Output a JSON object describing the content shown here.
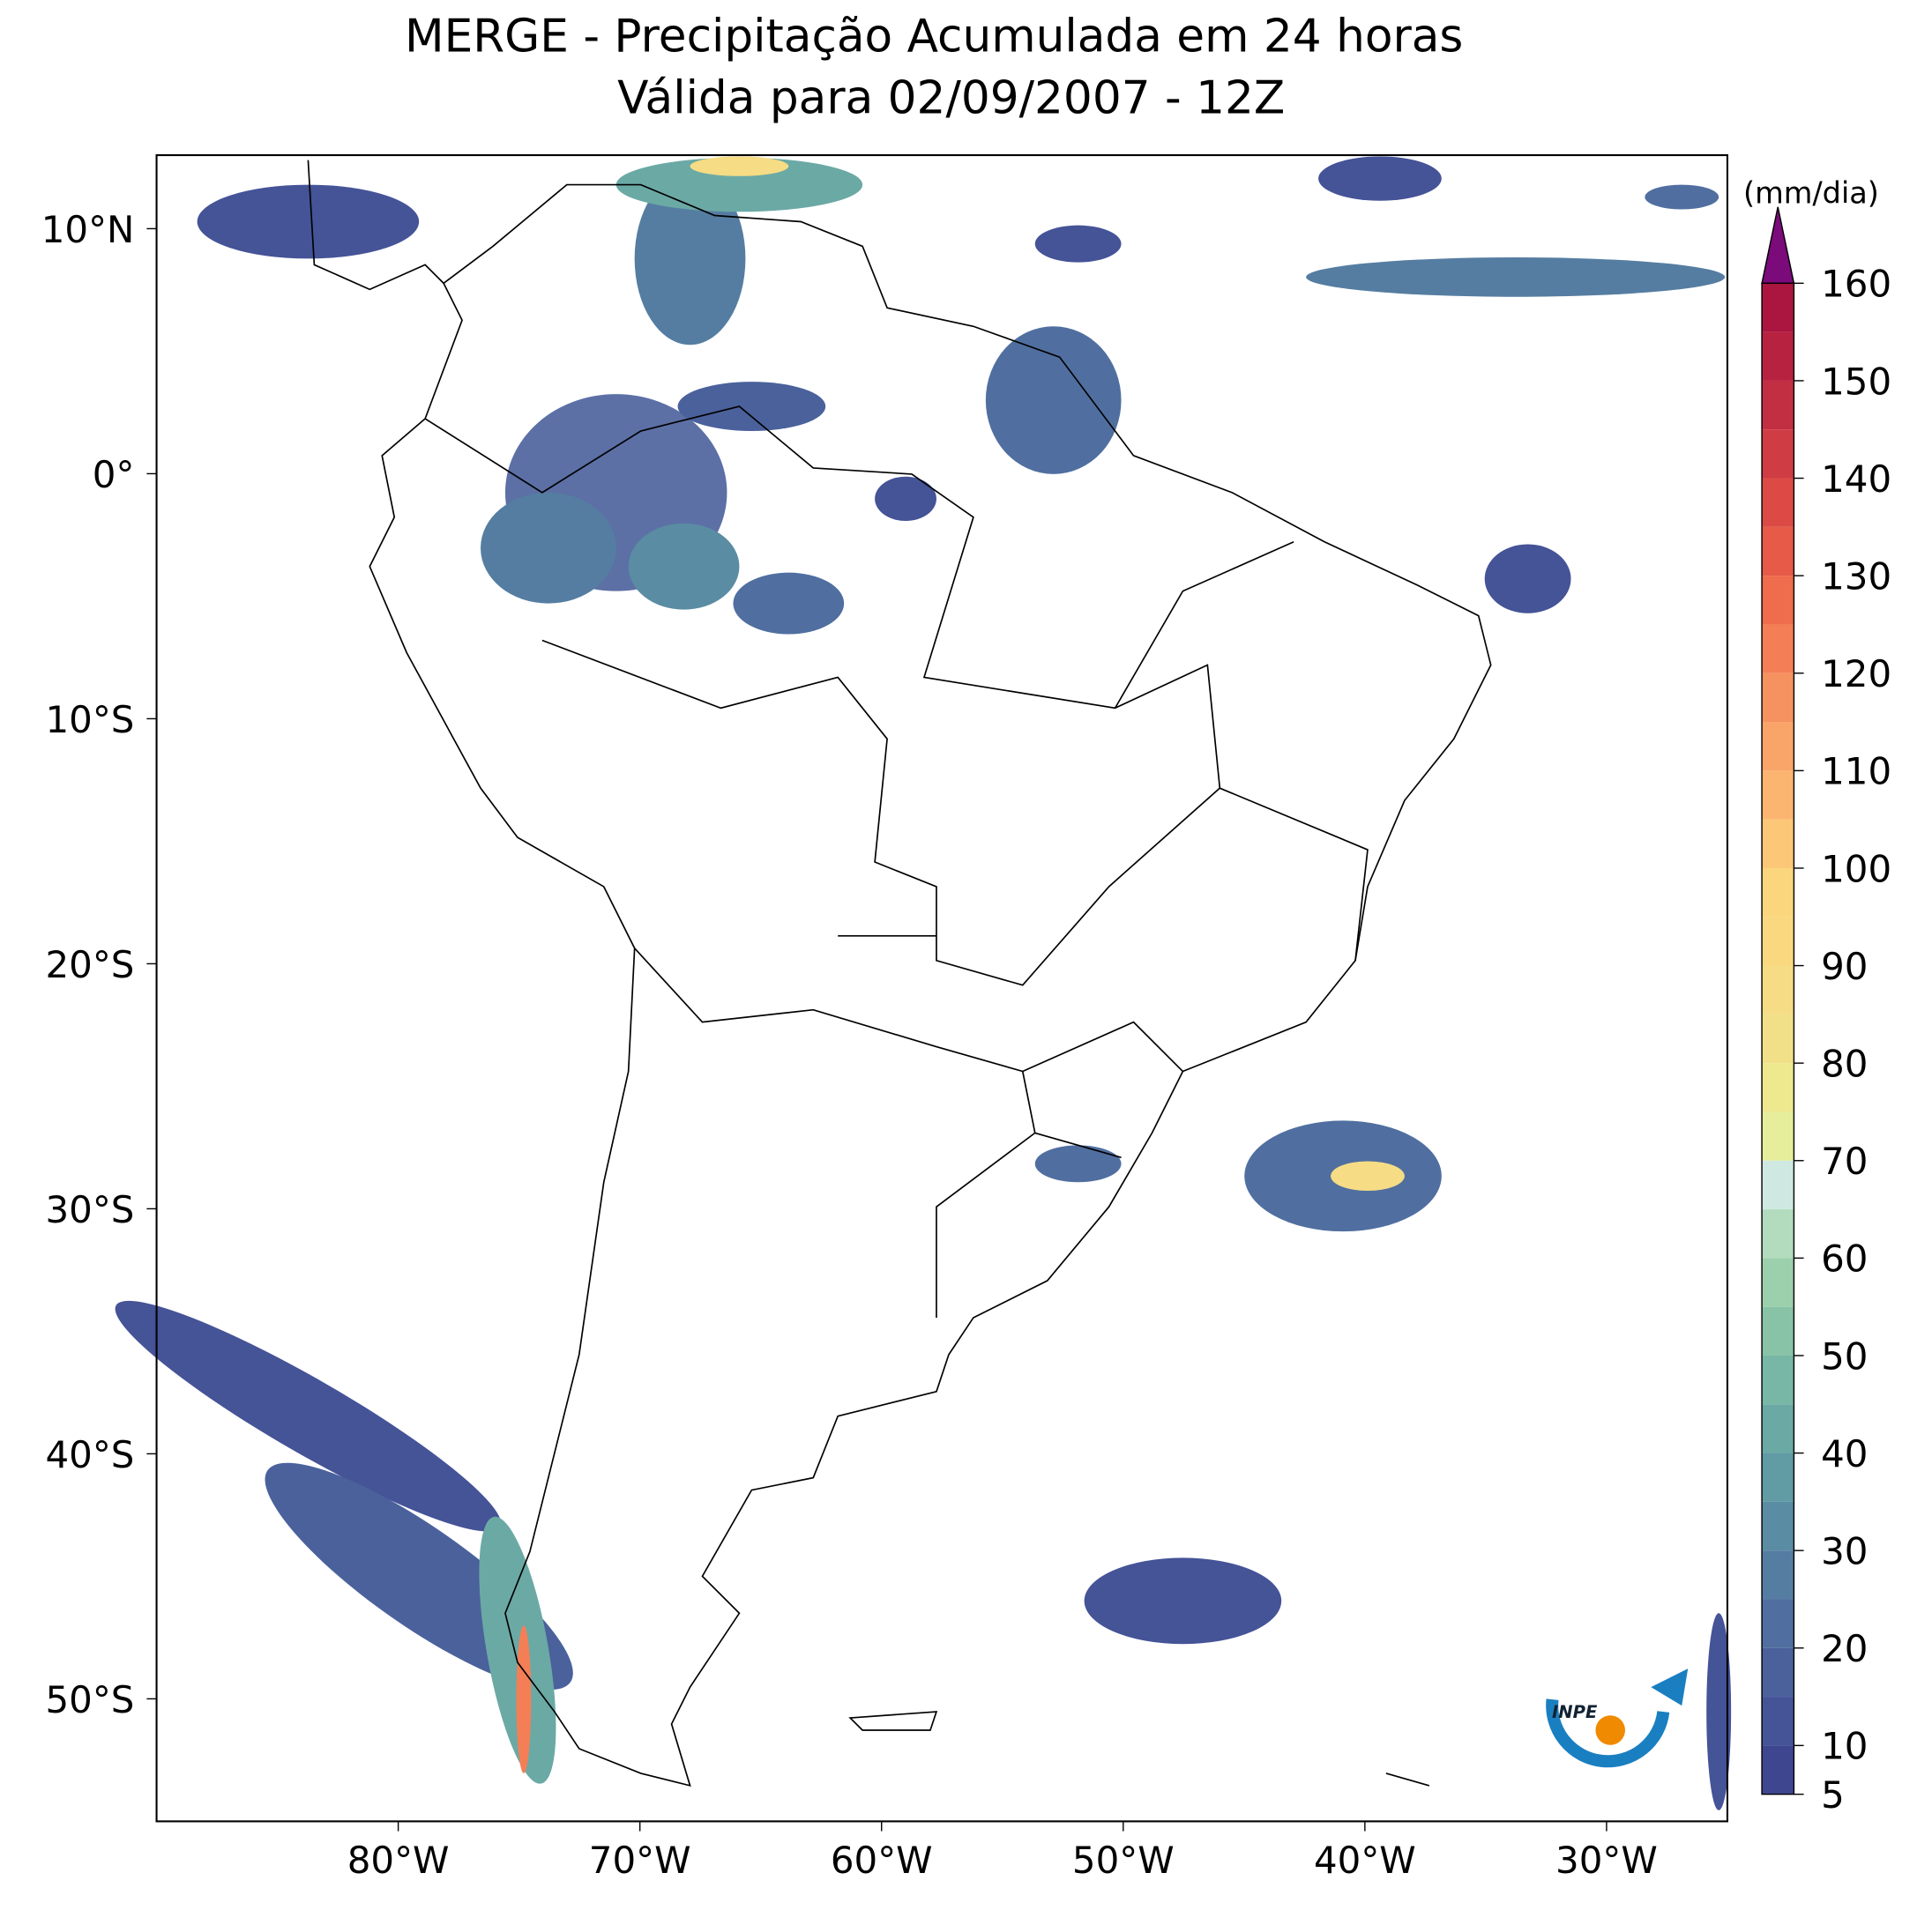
{
  "map": {
    "title": "MERGE - Precipitação Acumulada em 24 horas",
    "subtitle": "Válida para 02/09/2007 - 12Z",
    "lon_range": [
      -90,
      -25
    ],
    "lat_range": [
      -55,
      13
    ],
    "lon_ticks": [
      {
        "value": -80,
        "label": "80°W"
      },
      {
        "value": -70,
        "label": "70°W"
      },
      {
        "value": -60,
        "label": "60°W"
      },
      {
        "value": -50,
        "label": "50°W"
      },
      {
        "value": -40,
        "label": "40°W"
      },
      {
        "value": -30,
        "label": "30°W"
      }
    ],
    "lat_ticks": [
      {
        "value": 10,
        "label": "10°N"
      },
      {
        "value": 0,
        "label": "0°"
      },
      {
        "value": -10,
        "label": "10°S"
      },
      {
        "value": -20,
        "label": "20°S"
      },
      {
        "value": -30,
        "label": "30°S"
      },
      {
        "value": -40,
        "label": "40°S"
      },
      {
        "value": -50,
        "label": "50°S"
      }
    ],
    "colorbar": {
      "unit": "(mm/dia)",
      "levels": [
        5,
        10,
        15,
        20,
        25,
        30,
        35,
        40,
        45,
        50,
        55,
        60,
        65,
        70,
        75,
        80,
        85,
        90,
        95,
        100,
        105,
        110,
        115,
        120,
        125,
        130,
        135,
        140,
        145,
        150,
        155,
        160
      ],
      "colors": [
        "#3f4690",
        "#455397",
        "#4a619c",
        "#506fa0",
        "#557da2",
        "#5a8ca3",
        "#619ba4",
        "#6ba9a5",
        "#78b7a6",
        "#88c3a7",
        "#9ccfab",
        "#b3dbbd",
        "#cfe9e2",
        "#e6ee9c",
        "#eee88f",
        "#f2e089",
        "#f6dc84",
        "#f9d87f",
        "#fbd67c",
        "#fcc777",
        "#fbb570",
        "#f9a468",
        "#f6925f",
        "#f47f56",
        "#ef6c4d",
        "#e65a47",
        "#db4a44",
        "#cf3c43",
        "#c32f42",
        "#b82241",
        "#aa1640"
      ],
      "extend_color": "#7b0a7a",
      "ticks": [
        5,
        10,
        20,
        30,
        40,
        50,
        60,
        70,
        80,
        90,
        100,
        110,
        120,
        130,
        140,
        150,
        160
      ]
    },
    "logo": {
      "text": "INPE"
    }
  }
}
